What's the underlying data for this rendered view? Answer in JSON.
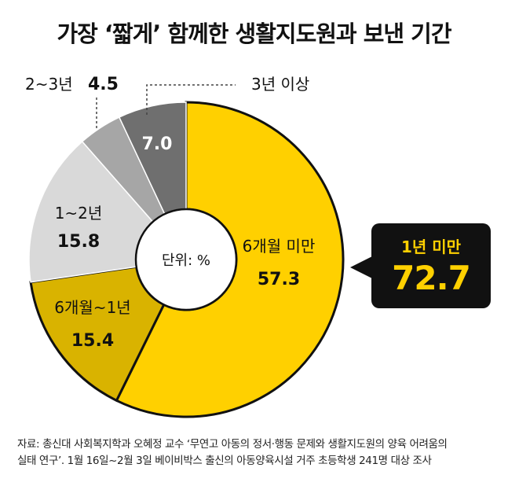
{
  "title": "가장 ‘짧게’ 함께한 생활지도원과 보낸 기간",
  "chart_data": {
    "type": "pie",
    "donut": true,
    "center_label": "단위: %",
    "slices": [
      {
        "label": "6개월 미만",
        "value": 57.3,
        "color": "#ffd000",
        "text_color": "#111111"
      },
      {
        "label": "6개월~1년",
        "value": 15.4,
        "color": "#d9b300",
        "text_color": "#111111"
      },
      {
        "label": "1~2년",
        "value": 15.8,
        "color": "#d9d9d9",
        "text_color": "#111111"
      },
      {
        "label": "2~3년",
        "value": 4.5,
        "color": "#a6a6a6",
        "text_color": "#111111"
      },
      {
        "label": "3년 이상",
        "value": 7.0,
        "color": "#6f6f6f",
        "text_color": "#ffffff"
      }
    ]
  },
  "callout": {
    "label": "1년 미만",
    "value": "72.7"
  },
  "source": {
    "line1": "자료: 총신대 사회복지학과 오혜정 교수 ‘무연고 아동의 정서·행동 문제와 생활지도원의 양육 어려움의",
    "line2": "실태 연구’. 1월 16일~2월 3일 베이비박스 출신의 아동양육시설 거주 초등학생 241명 대상 조사"
  }
}
